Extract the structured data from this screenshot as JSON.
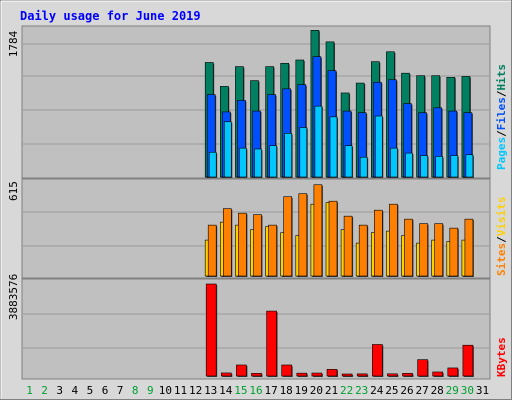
{
  "title": "Daily usage for June 2019",
  "panels": {
    "top": {
      "max_label": "1784",
      "legend": [
        {
          "text": "Pages",
          "color": "#00c8ff"
        },
        {
          "text": "/",
          "color": "#000000"
        },
        {
          "text": "Files",
          "color": "#0050ff"
        },
        {
          "text": "/",
          "color": "#000000"
        },
        {
          "text": "Hits",
          "color": "#008060"
        }
      ]
    },
    "middle": {
      "max_label": "615",
      "legend": [
        {
          "text": "Sites",
          "color": "#ff8000"
        },
        {
          "text": "/",
          "color": "#000000"
        },
        {
          "text": "Visits",
          "color": "#ffd000"
        }
      ]
    },
    "bottom": {
      "max_label": "3883576",
      "legend": [
        {
          "text": "KBytes",
          "color": "#ff0000"
        }
      ]
    }
  },
  "colors": {
    "hits": "#008060",
    "files": "#0050ff",
    "pages": "#00c8ff",
    "visits": "#ffd000",
    "sites": "#ff8000",
    "kbytes": "#ff0000",
    "weekend_day": "#00a030",
    "weekday": "#000000",
    "title": "#0000ff",
    "plot_bg": "#c0c0c0",
    "frame_bg": "#d8d8d8"
  },
  "chart_data": {
    "type": "bar",
    "x": [
      1,
      2,
      3,
      4,
      5,
      6,
      7,
      8,
      9,
      10,
      11,
      12,
      13,
      14,
      15,
      16,
      17,
      18,
      19,
      20,
      21,
      22,
      23,
      24,
      25,
      26,
      27,
      28,
      29,
      30,
      31
    ],
    "weekend_days": [
      1,
      2,
      8,
      9,
      15,
      16,
      22,
      23,
      29,
      30
    ],
    "panels": [
      {
        "id": "top",
        "max": 1784,
        "series": [
          {
            "name": "Hits",
            "values": [
              0,
              0,
              0,
              0,
              0,
              0,
              0,
              0,
              0,
              0,
              0,
              0,
              1390,
              1100,
              1340,
              1170,
              1340,
              1380,
              1420,
              1780,
              1640,
              1020,
              1140,
              1400,
              1520,
              1260,
              1230,
              1230,
              1210,
              1220,
              0
            ]
          },
          {
            "name": "Files",
            "values": [
              0,
              0,
              0,
              0,
              0,
              0,
              0,
              0,
              0,
              0,
              0,
              0,
              1000,
              790,
              930,
              800,
              1000,
              1070,
              1120,
              1460,
              1290,
              800,
              780,
              1150,
              1180,
              890,
              780,
              840,
              800,
              780,
              0
            ]
          },
          {
            "name": "Pages",
            "values": [
              0,
              0,
              0,
              0,
              0,
              0,
              0,
              0,
              0,
              0,
              0,
              0,
              300,
              670,
              350,
              340,
              380,
              530,
              600,
              860,
              730,
              380,
              240,
              740,
              350,
              290,
              260,
              250,
              260,
              270,
              0
            ]
          }
        ]
      },
      {
        "id": "middle",
        "max": 615,
        "series": [
          {
            "name": "Visits",
            "values": [
              0,
              0,
              0,
              0,
              0,
              0,
              0,
              0,
              0,
              0,
              0,
              0,
              240,
              360,
              340,
              310,
              330,
              290,
              270,
              480,
              490,
              310,
              220,
              290,
              300,
              270,
              220,
              240,
              230,
              240,
              0
            ]
          },
          {
            "name": "Sites",
            "values": [
              0,
              0,
              0,
              0,
              0,
              0,
              0,
              0,
              0,
              0,
              0,
              0,
              340,
              450,
              420,
              410,
              340,
              530,
              550,
              610,
              500,
              400,
              340,
              440,
              480,
              380,
              350,
              350,
              320,
              380,
              0
            ]
          }
        ]
      },
      {
        "id": "bottom",
        "max": 3883576,
        "series": [
          {
            "name": "KBytes",
            "values": [
              0,
              0,
              0,
              0,
              0,
              0,
              0,
              0,
              0,
              0,
              0,
              0,
              3883576,
              128000,
              465000,
              112000,
              2740000,
              465000,
              120000,
              125000,
              280000,
              60000,
              90000,
              1330000,
              92000,
              112000,
              690000,
              170000,
              340000,
              1300000,
              0
            ]
          }
        ]
      }
    ]
  }
}
